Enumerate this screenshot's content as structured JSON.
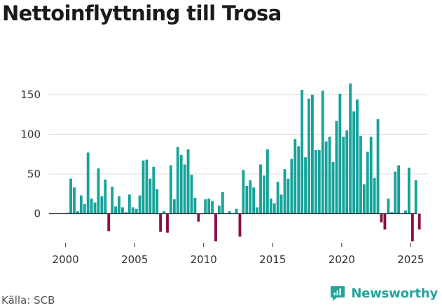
{
  "title": "Nettoinflyttning till Trosa",
  "source": "Källa: SCB",
  "brand": "Newsworthy",
  "colors": {
    "positive": "#16a39a",
    "negative": "#8b0d44",
    "grid": "#dddddd",
    "brand": "#25a39a"
  },
  "chart_data": {
    "type": "bar",
    "title": "Nettoinflyttning till Trosa",
    "xlabel": "",
    "ylabel": "",
    "ylim": [
      -42,
      172
    ],
    "xlim": [
      1998.8,
      2026.2
    ],
    "yticks": [
      0,
      50,
      100,
      150
    ],
    "xticks": [
      2000,
      2005,
      2010,
      2015,
      2020,
      2025
    ],
    "grid": true,
    "legend": "none",
    "series": [
      {
        "name": "Nettoinflyttning",
        "x": [
          2000.125,
          2000.375,
          2000.625,
          2000.875,
          2001.125,
          2001.375,
          2001.625,
          2001.875,
          2002.125,
          2002.375,
          2002.625,
          2002.875,
          2003.125,
          2003.375,
          2003.625,
          2003.875,
          2004.125,
          2004.375,
          2004.625,
          2004.875,
          2005.125,
          2005.375,
          2005.625,
          2005.875,
          2006.125,
          2006.375,
          2006.625,
          2006.875,
          2007.125,
          2007.375,
          2007.625,
          2007.875,
          2008.125,
          2008.375,
          2008.625,
          2008.875,
          2009.125,
          2009.375,
          2009.625,
          2009.875,
          2010.125,
          2010.375,
          2010.625,
          2010.875,
          2011.125,
          2011.375,
          2011.625,
          2011.875,
          2012.125,
          2012.375,
          2012.625,
          2012.875,
          2013.125,
          2013.375,
          2013.625,
          2013.875,
          2014.125,
          2014.375,
          2014.625,
          2014.875,
          2015.125,
          2015.375,
          2015.625,
          2015.875,
          2016.125,
          2016.375,
          2016.625,
          2016.875,
          2017.125,
          2017.375,
          2017.625,
          2017.875,
          2018.125,
          2018.375,
          2018.625,
          2018.875,
          2019.125,
          2019.375,
          2019.625,
          2019.875,
          2020.125,
          2020.375,
          2020.625,
          2020.875,
          2021.125,
          2021.375,
          2021.625,
          2021.875,
          2022.125,
          2022.375,
          2022.625,
          2022.875,
          2023.125,
          2023.375,
          2023.625,
          2023.875,
          2024.125,
          2024.375,
          2024.625,
          2024.875,
          2025.125,
          2025.375,
          2025.625
        ],
        "values": [
          1,
          44,
          33,
          3,
          23,
          12,
          77,
          19,
          14,
          57,
          22,
          43,
          -22,
          34,
          9,
          22,
          8,
          2,
          24,
          8,
          6,
          23,
          67,
          68,
          44,
          59,
          31,
          -23,
          3,
          -24,
          61,
          18,
          84,
          74,
          62,
          81,
          49,
          20,
          -10,
          0,
          18,
          19,
          16,
          -35,
          10,
          27,
          0,
          3,
          0,
          6,
          -29,
          55,
          35,
          42,
          33,
          8,
          62,
          48,
          81,
          19,
          13,
          40,
          24,
          56,
          44,
          69,
          94,
          85,
          156,
          71,
          145,
          150,
          80,
          80,
          155,
          91,
          97,
          65,
          117,
          151,
          97,
          105,
          164,
          129,
          144,
          98,
          37,
          78,
          97,
          45,
          119,
          -11,
          -20,
          19,
          2,
          53,
          61,
          0,
          4,
          58,
          -35,
          42,
          -20
        ]
      }
    ]
  }
}
